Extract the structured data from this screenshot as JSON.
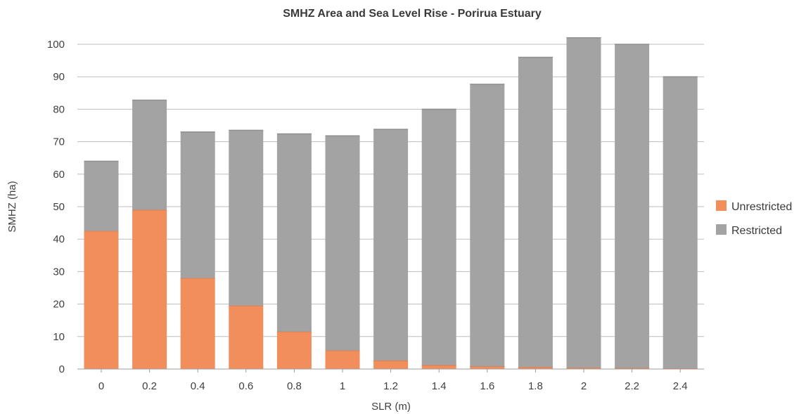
{
  "chart_data": {
    "type": "bar",
    "stacked": true,
    "title": "SMHZ Area and Sea Level Rise - Porirua Estuary",
    "xlabel": "SLR (m)",
    "ylabel": "SMHZ (ha)",
    "ylim": [
      0,
      100
    ],
    "yticks": [
      "0",
      "10",
      "20",
      "30",
      "40",
      "50",
      "60",
      "70",
      "80",
      "90",
      "100"
    ],
    "categories": [
      "0",
      "0.2",
      "0.4",
      "0.6",
      "0.8",
      "1",
      "1.2",
      "1.4",
      "1.6",
      "1.8",
      "2",
      "2.2",
      "2.4"
    ],
    "series": [
      {
        "name": "Unrestricted",
        "color": "#f28e5c",
        "values": [
          42.5,
          49,
          28,
          19.5,
          11.5,
          5.7,
          2.6,
          1.2,
          0.8,
          0.6,
          0.4,
          0.3,
          0.2
        ]
      },
      {
        "name": "Restricted",
        "color": "#a3a3a3",
        "values": [
          21.5,
          33.8,
          45,
          54,
          60.9,
          66.1,
          71.2,
          78.8,
          86.9,
          95.4,
          101.6,
          99.7,
          89.8
        ]
      }
    ],
    "grid": true,
    "legend_position": "right"
  }
}
